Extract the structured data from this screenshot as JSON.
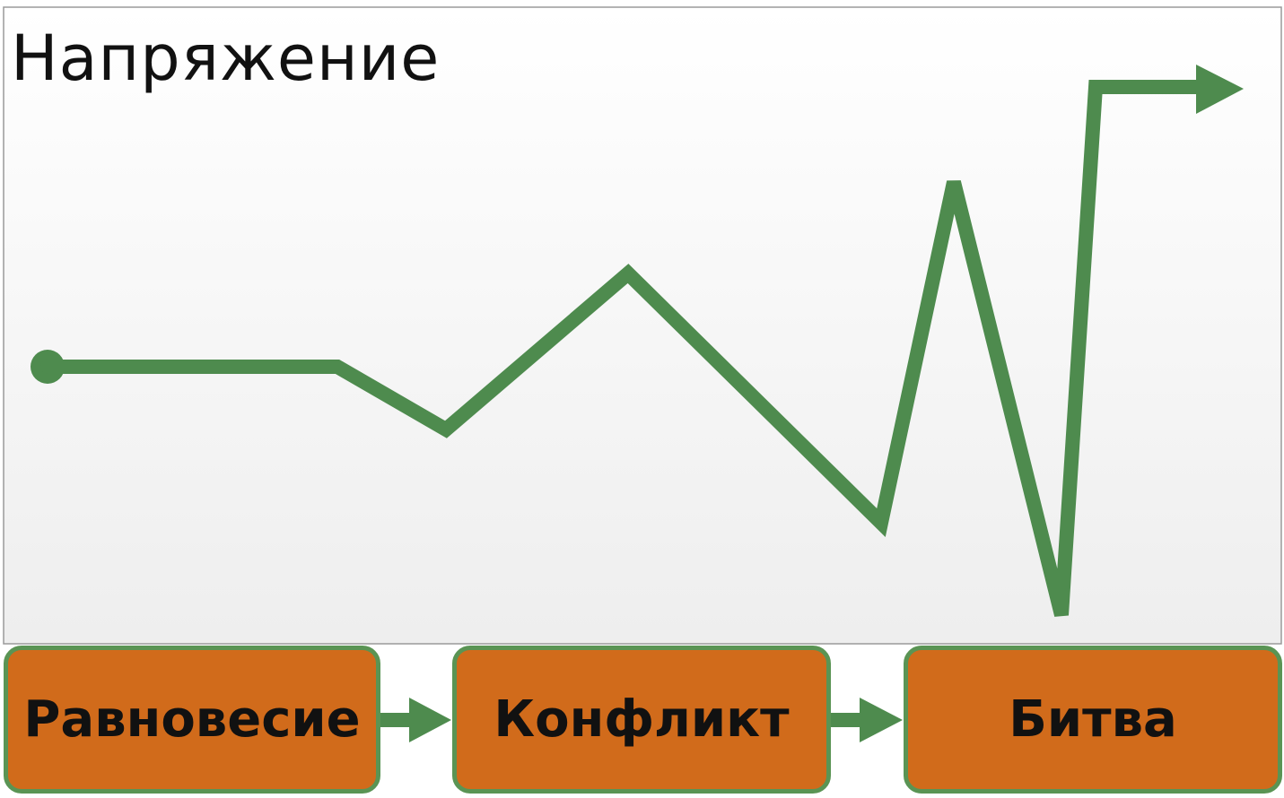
{
  "title": "Напряжение",
  "colors": {
    "line": "#4e8b4e",
    "stage_fill": "#d16b1b",
    "stage_border": "#5a9454"
  },
  "stages": [
    {
      "label": "Равновесие"
    },
    {
      "label": "Конфликт"
    },
    {
      "label": "Битва"
    }
  ]
}
